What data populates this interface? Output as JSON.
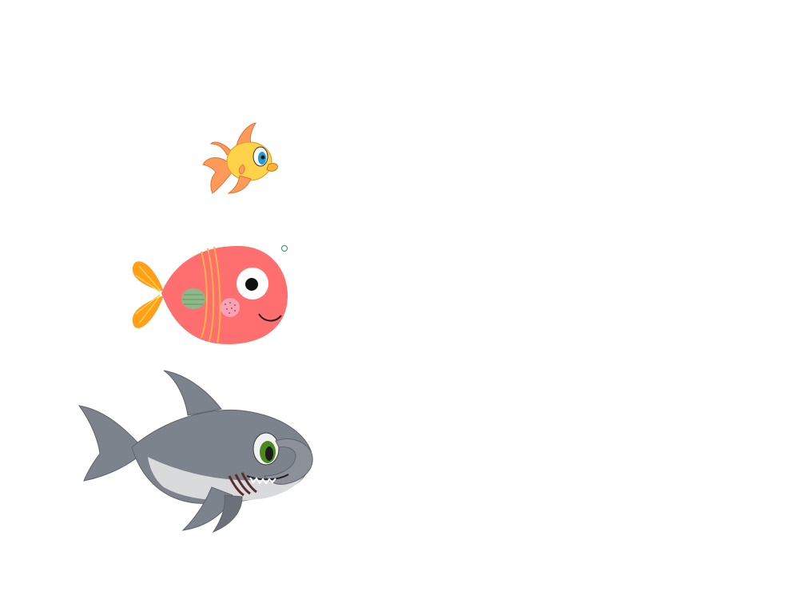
{
  "scene": {
    "background_color": "#ffffff",
    "sprites": [
      {
        "name": "goldfish",
        "icon": "goldfish-icon"
      },
      {
        "name": "pink-fish",
        "icon": "pink-fish-icon"
      },
      {
        "name": "shark",
        "icon": "shark-icon"
      },
      {
        "name": "bubble",
        "icon": "bubble-icon"
      }
    ]
  },
  "colors": {
    "goldfish_body": "#ffd24a",
    "goldfish_fins": "#ff9a5a",
    "pinkfish_body": "#ff6f6f",
    "pinkfish_tail": "#ff9f1a",
    "shark_body": "#7d838d",
    "shark_belly": "#d9dadc",
    "bubble_outline": "#2e8a6a"
  }
}
